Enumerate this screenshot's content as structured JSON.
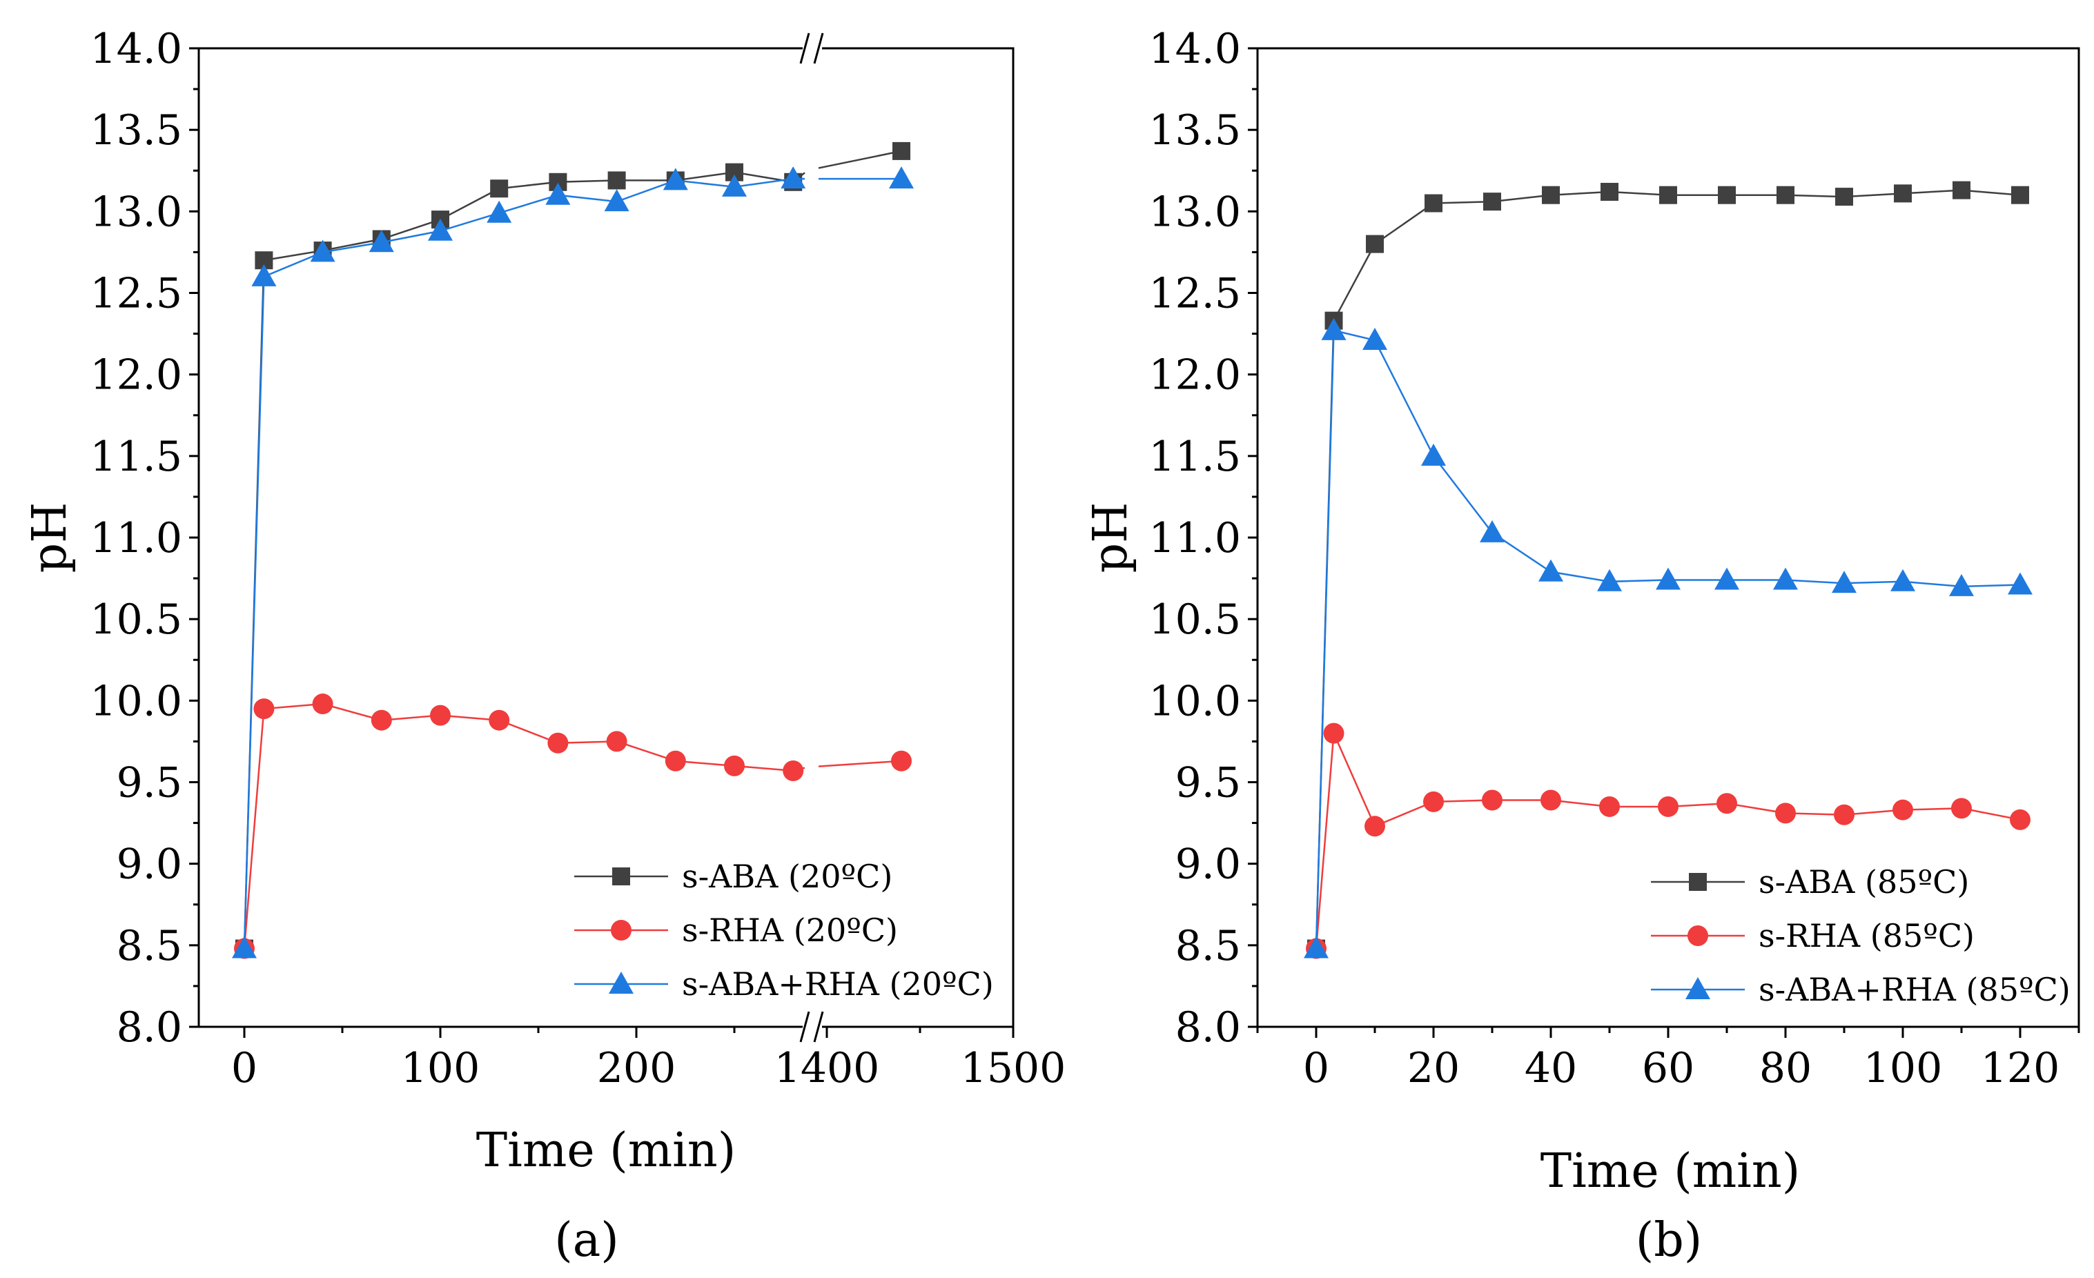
{
  "colors": {
    "series1": "#404040",
    "series2": "#f03c3c",
    "series3": "#1f7ae0"
  },
  "chart_data": [
    {
      "type": "line",
      "panel_label": "(a)",
      "xlabel": "Time (min)",
      "ylabel": "pH",
      "ylim": [
        8.0,
        14.0
      ],
      "ytick_labels": [
        "8.0",
        "8.5",
        "9.0",
        "9.5",
        "10.0",
        "10.5",
        "11.0",
        "11.5",
        "12.0",
        "12.5",
        "13.0",
        "13.5",
        "14.0"
      ],
      "x_axis_break": true,
      "xtick_labels": [
        "0",
        "100",
        "200",
        "1400",
        "1500"
      ],
      "series": [
        {
          "name": "s-ABA (20ºC)",
          "marker": "square",
          "x": [
            0,
            10,
            40,
            70,
            100,
            130,
            160,
            190,
            220,
            250,
            280,
            1440
          ],
          "values": [
            8.48,
            12.7,
            12.76,
            12.83,
            12.95,
            13.14,
            13.18,
            13.19,
            13.19,
            13.24,
            13.18,
            13.37
          ]
        },
        {
          "name": "s-RHA (20ºC)",
          "marker": "circle",
          "x": [
            0,
            10,
            40,
            70,
            100,
            130,
            160,
            190,
            220,
            250,
            280,
            1440
          ],
          "values": [
            8.48,
            9.95,
            9.98,
            9.88,
            9.91,
            9.88,
            9.74,
            9.75,
            9.63,
            9.6,
            9.57,
            9.63
          ]
        },
        {
          "name": "s-ABA+RHA (20ºC)",
          "marker": "triangle",
          "x": [
            0,
            10,
            40,
            70,
            100,
            130,
            160,
            190,
            220,
            250,
            280,
            1440
          ],
          "values": [
            8.48,
            12.6,
            12.75,
            12.81,
            12.88,
            12.99,
            13.1,
            13.06,
            13.19,
            13.15,
            13.2,
            13.2
          ]
        }
      ]
    },
    {
      "type": "line",
      "panel_label": "(b)",
      "xlabel": "Time (min)",
      "ylabel": "pH",
      "ylim": [
        8.0,
        14.0
      ],
      "xlim": [
        -10,
        130
      ],
      "ytick_labels": [
        "8.0",
        "8.5",
        "9.0",
        "9.5",
        "10.0",
        "10.5",
        "11.0",
        "11.5",
        "12.0",
        "12.5",
        "13.0",
        "13.5",
        "14.0"
      ],
      "xtick_labels": [
        "0",
        "20",
        "40",
        "60",
        "80",
        "100",
        "120"
      ],
      "series": [
        {
          "name": "s-ABA (85ºC)",
          "marker": "square",
          "x": [
            0,
            3,
            10,
            20,
            30,
            40,
            50,
            60,
            70,
            80,
            90,
            100,
            110,
            120
          ],
          "values": [
            8.48,
            12.33,
            12.8,
            13.05,
            13.06,
            13.1,
            13.12,
            13.1,
            13.1,
            13.1,
            13.09,
            13.11,
            13.13,
            13.1
          ]
        },
        {
          "name": "s-RHA (85ºC)",
          "marker": "circle",
          "x": [
            0,
            3,
            10,
            20,
            30,
            40,
            50,
            60,
            70,
            80,
            90,
            100,
            110,
            120
          ],
          "values": [
            8.48,
            9.8,
            9.23,
            9.38,
            9.39,
            9.39,
            9.35,
            9.35,
            9.37,
            9.31,
            9.3,
            9.33,
            9.34,
            9.27
          ]
        },
        {
          "name": "s-ABA+RHA (85ºC)",
          "marker": "triangle",
          "x": [
            0,
            3,
            10,
            20,
            30,
            40,
            50,
            60,
            70,
            80,
            90,
            100,
            110,
            120
          ],
          "values": [
            8.48,
            12.27,
            12.21,
            11.5,
            11.03,
            10.79,
            10.73,
            10.74,
            10.74,
            10.74,
            10.72,
            10.73,
            10.7,
            10.71
          ]
        }
      ]
    }
  ]
}
